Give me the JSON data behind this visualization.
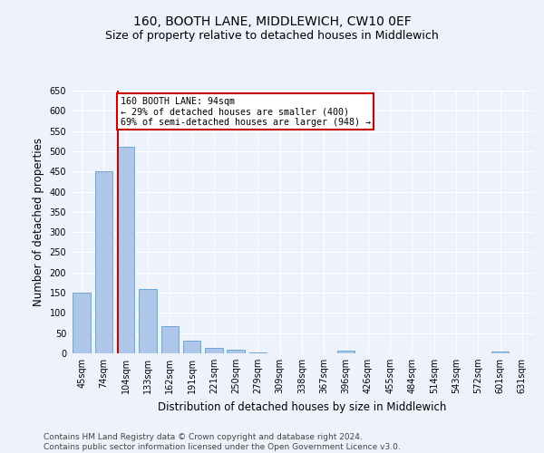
{
  "title": "160, BOOTH LANE, MIDDLEWICH, CW10 0EF",
  "subtitle": "Size of property relative to detached houses in Middlewich",
  "xlabel": "Distribution of detached houses by size in Middlewich",
  "ylabel": "Number of detached properties",
  "categories": [
    "45sqm",
    "74sqm",
    "104sqm",
    "133sqm",
    "162sqm",
    "191sqm",
    "221sqm",
    "250sqm",
    "279sqm",
    "309sqm",
    "338sqm",
    "367sqm",
    "396sqm",
    "426sqm",
    "455sqm",
    "484sqm",
    "514sqm",
    "543sqm",
    "572sqm",
    "601sqm",
    "631sqm"
  ],
  "values": [
    150,
    450,
    510,
    160,
    68,
    32,
    13,
    8,
    3,
    0,
    0,
    0,
    7,
    0,
    0,
    0,
    0,
    0,
    0,
    5,
    0
  ],
  "bar_color": "#aec6e8",
  "bar_edge_color": "#5a9fd4",
  "vline_color": "#cc0000",
  "annotation_text": "160 BOOTH LANE: 94sqm\n← 29% of detached houses are smaller (400)\n69% of semi-detached houses are larger (948) →",
  "annotation_box_color": "#ffffff",
  "annotation_box_edge_color": "#cc0000",
  "ylim": [
    0,
    650
  ],
  "yticks": [
    0,
    50,
    100,
    150,
    200,
    250,
    300,
    350,
    400,
    450,
    500,
    550,
    600,
    650
  ],
  "footer_text": "Contains HM Land Registry data © Crown copyright and database right 2024.\nContains public sector information licensed under the Open Government Licence v3.0.",
  "bg_color": "#eef2fb",
  "grid_color": "#ffffff",
  "title_fontsize": 10,
  "subtitle_fontsize": 9,
  "tick_fontsize": 7,
  "label_fontsize": 8.5,
  "footer_fontsize": 6.5
}
